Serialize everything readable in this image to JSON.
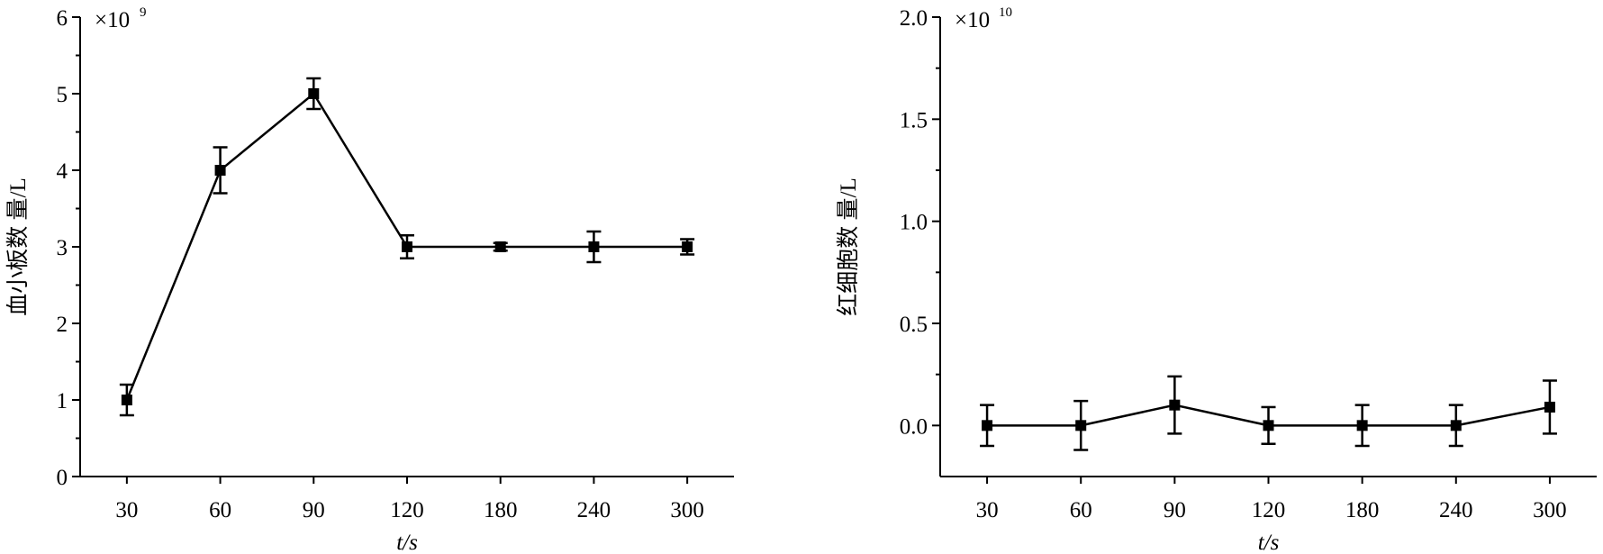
{
  "chart_data": [
    {
      "type": "line",
      "y_label": "血小板数 量/L",
      "x_label": "t/s",
      "scale_base": "×10",
      "scale_exponent": "9",
      "categories": [
        "30",
        "60",
        "90",
        "120",
        "180",
        "240",
        "300"
      ],
      "values": [
        1,
        4,
        5,
        3,
        3,
        3,
        3
      ],
      "errors": [
        0.2,
        0.3,
        0.2,
        0.15,
        0.05,
        0.2,
        0.1
      ],
      "color": "#000000",
      "ylim": [
        0,
        6
      ],
      "yticks": [
        0,
        1,
        2,
        3,
        4,
        5,
        6
      ]
    },
    {
      "type": "line",
      "y_label": "红细胞数 量/L",
      "x_label": "t/s",
      "scale_base": "×10",
      "scale_exponent": "10",
      "categories": [
        "30",
        "60",
        "90",
        "120",
        "180",
        "240",
        "300"
      ],
      "values": [
        0,
        0,
        0.1,
        0,
        0,
        0,
        0.09
      ],
      "errors": [
        0.1,
        0.12,
        0.14,
        0.09,
        0.1,
        0.1,
        0.13
      ],
      "color": "#000000",
      "ylim": [
        -0.25,
        2.0
      ],
      "yticks": [
        {
          "value": 0,
          "label": "0.0"
        },
        0.5,
        {
          "value": 1,
          "label": "1.0"
        },
        1.5,
        {
          "value": 2,
          "label": "2.0"
        }
      ]
    }
  ]
}
